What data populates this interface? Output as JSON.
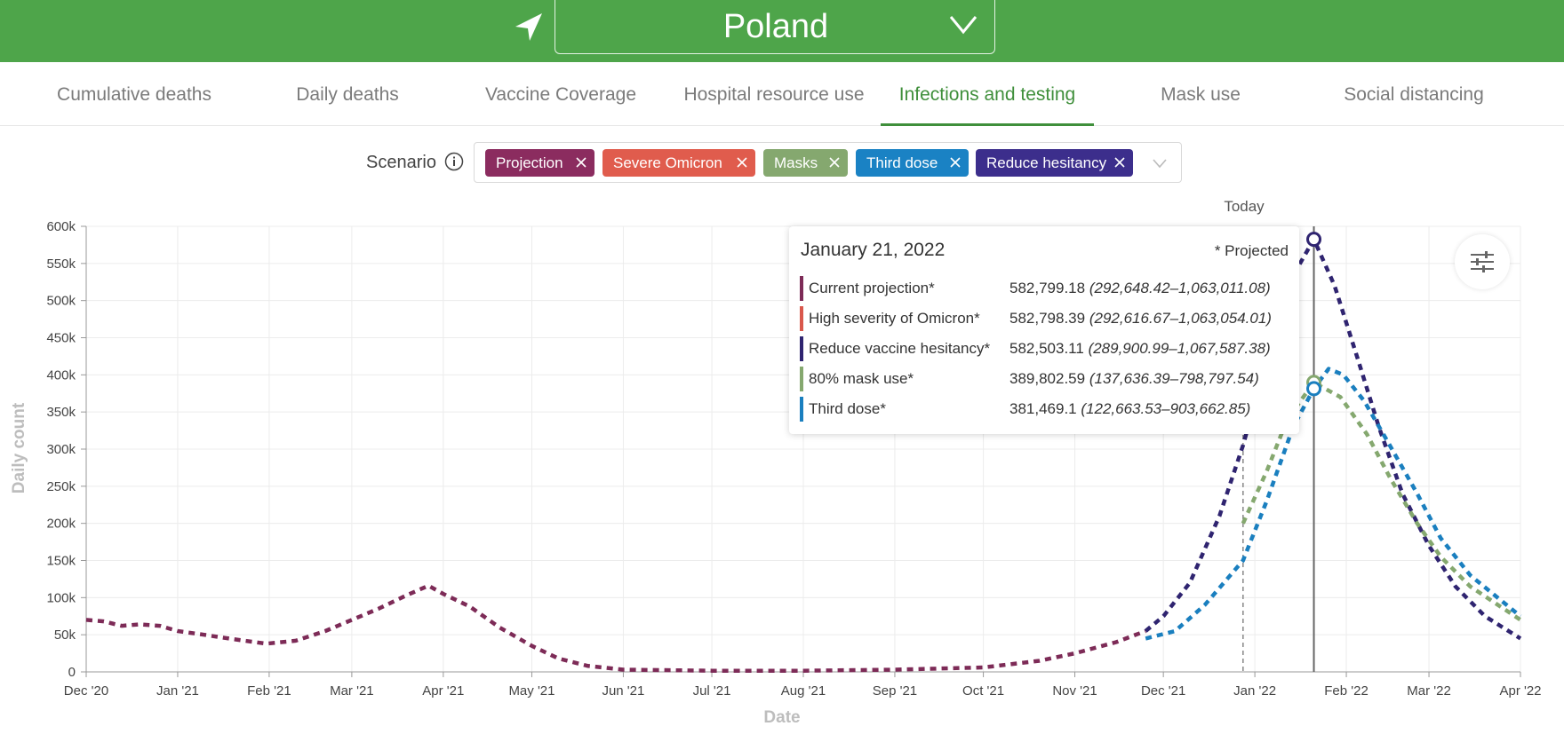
{
  "header": {
    "country": "Poland",
    "location_icon": "location-arrow-icon",
    "dropdown_icon": "chevron-down-icon"
  },
  "tabs": [
    {
      "label": "Cumulative deaths",
      "active": false
    },
    {
      "label": "Daily deaths",
      "active": false
    },
    {
      "label": "Vaccine Coverage",
      "active": false
    },
    {
      "label": "Hospital resource use",
      "active": false
    },
    {
      "label": "Infections and testing",
      "active": true
    },
    {
      "label": "Mask use",
      "active": false
    },
    {
      "label": "Social distancing",
      "active": false
    }
  ],
  "scenario": {
    "label": "Scenario",
    "tags": [
      {
        "label": "Projection",
        "color": "#8b2c5f"
      },
      {
        "label": "Severe Omicron",
        "color": "#e05c4d"
      },
      {
        "label": "Masks",
        "color": "#85a86f"
      },
      {
        "label": "Third dose",
        "color": "#1a82c4"
      },
      {
        "label": "Reduce hesitancy",
        "color": "#3c2e8c"
      }
    ]
  },
  "tooltip": {
    "date": "January 21, 2022",
    "projected_note": "* Projected",
    "rows": [
      {
        "name": "Current projection*",
        "value": "582,799.18",
        "range": "(292,648.42–1,063,011.08)",
        "color": "#7d2b57"
      },
      {
        "name": "High severity of Omicron*",
        "value": "582,798.39",
        "range": "(292,616.67–1,063,054.01)",
        "color": "#d9584c"
      },
      {
        "name": "Reduce vaccine hesitancy*",
        "value": "582,503.11",
        "range": "(289,900.99–1,067,587.38)",
        "color": "#2f2470"
      },
      {
        "name": "80% mask use*",
        "value": "389,802.59",
        "range": "(137,636.39–798,797.54)",
        "color": "#85a86f"
      },
      {
        "name": "Third dose*",
        "value": "381,469.1",
        "range": "(122,663.53–903,662.85)",
        "color": "#1a7fbf"
      }
    ]
  },
  "chart_data": {
    "type": "line",
    "title": "",
    "xlabel": "Date",
    "ylabel": "Daily count",
    "ylim": [
      0,
      600000
    ],
    "xlim": [
      "2020-12-01",
      "2022-04-01"
    ],
    "grid": true,
    "today_label": "Today",
    "today_date": "2021-12-28",
    "hover_date": "2022-01-21",
    "yticks": [
      {
        "value": 0,
        "label": "0"
      },
      {
        "value": 50000,
        "label": "50k"
      },
      {
        "value": 100000,
        "label": "100k"
      },
      {
        "value": 150000,
        "label": "150k"
      },
      {
        "value": 200000,
        "label": "200k"
      },
      {
        "value": 250000,
        "label": "250k"
      },
      {
        "value": 300000,
        "label": "300k"
      },
      {
        "value": 350000,
        "label": "350k"
      },
      {
        "value": 400000,
        "label": "400k"
      },
      {
        "value": 450000,
        "label": "450k"
      },
      {
        "value": 500000,
        "label": "500k"
      },
      {
        "value": 550000,
        "label": "550k"
      },
      {
        "value": 600000,
        "label": "600k"
      }
    ],
    "xticks": [
      {
        "date": "2020-12-01",
        "label": "Dec '20"
      },
      {
        "date": "2021-01-01",
        "label": "Jan '21"
      },
      {
        "date": "2021-02-01",
        "label": "Feb '21"
      },
      {
        "date": "2021-03-01",
        "label": "Mar '21"
      },
      {
        "date": "2021-04-01",
        "label": "Apr '21"
      },
      {
        "date": "2021-05-01",
        "label": "May '21"
      },
      {
        "date": "2021-06-01",
        "label": "Jun '21"
      },
      {
        "date": "2021-07-01",
        "label": "Jul '21"
      },
      {
        "date": "2021-08-01",
        "label": "Aug '21"
      },
      {
        "date": "2021-09-01",
        "label": "Sep '21"
      },
      {
        "date": "2021-10-01",
        "label": "Oct '21"
      },
      {
        "date": "2021-11-01",
        "label": "Nov '21"
      },
      {
        "date": "2021-12-01",
        "label": "Dec '21"
      },
      {
        "date": "2022-01-01",
        "label": "Jan '22"
      },
      {
        "date": "2022-02-01",
        "label": "Feb '22"
      },
      {
        "date": "2022-03-01",
        "label": "Mar '22"
      },
      {
        "date": "2022-04-01",
        "label": "Apr '22"
      }
    ],
    "series": [
      {
        "name": "Current projection*",
        "color": "#7d2b57",
        "points": [
          [
            "2020-12-01",
            70000
          ],
          [
            "2020-12-07",
            68000
          ],
          [
            "2020-12-13",
            62000
          ],
          [
            "2020-12-19",
            64000
          ],
          [
            "2020-12-26",
            62000
          ],
          [
            "2021-01-01",
            55000
          ],
          [
            "2021-01-10",
            50000
          ],
          [
            "2021-01-20",
            44000
          ],
          [
            "2021-01-31",
            38000
          ],
          [
            "2021-02-10",
            42000
          ],
          [
            "2021-02-20",
            55000
          ],
          [
            "2021-03-01",
            70000
          ],
          [
            "2021-03-10",
            85000
          ],
          [
            "2021-03-20",
            104000
          ],
          [
            "2021-03-27",
            116000
          ],
          [
            "2021-04-01",
            105000
          ],
          [
            "2021-04-10",
            88000
          ],
          [
            "2021-04-20",
            60000
          ],
          [
            "2021-05-01",
            35000
          ],
          [
            "2021-05-10",
            18000
          ],
          [
            "2021-05-20",
            8000
          ],
          [
            "2021-06-01",
            3000
          ],
          [
            "2021-07-01",
            1500
          ],
          [
            "2021-08-01",
            1500
          ],
          [
            "2021-09-01",
            3000
          ],
          [
            "2021-10-01",
            6000
          ],
          [
            "2021-10-20",
            15000
          ],
          [
            "2021-11-01",
            25000
          ],
          [
            "2021-11-15",
            40000
          ],
          [
            "2021-11-25",
            55000
          ]
        ]
      },
      {
        "name": "Reduce vaccine hesitancy*",
        "color": "#2f2470",
        "points": [
          [
            "2021-11-25",
            55000
          ],
          [
            "2021-12-01",
            75000
          ],
          [
            "2021-12-10",
            120000
          ],
          [
            "2021-12-20",
            210000
          ],
          [
            "2021-12-28",
            305000
          ],
          [
            "2022-01-05",
            420000
          ],
          [
            "2022-01-12",
            520000
          ],
          [
            "2022-01-21",
            582503
          ],
          [
            "2022-01-28",
            520000
          ],
          [
            "2022-02-05",
            420000
          ],
          [
            "2022-02-12",
            330000
          ],
          [
            "2022-02-20",
            240000
          ],
          [
            "2022-03-01",
            170000
          ],
          [
            "2022-03-10",
            115000
          ],
          [
            "2022-03-20",
            75000
          ],
          [
            "2022-04-01",
            45000
          ]
        ]
      },
      {
        "name": "80% mask use*",
        "color": "#85a86f",
        "points": [
          [
            "2021-12-28",
            200000
          ],
          [
            "2022-01-05",
            270000
          ],
          [
            "2022-01-12",
            340000
          ],
          [
            "2022-01-21",
            389803
          ],
          [
            "2022-01-30",
            370000
          ],
          [
            "2022-02-08",
            320000
          ],
          [
            "2022-02-16",
            260000
          ],
          [
            "2022-02-25",
            200000
          ],
          [
            "2022-03-05",
            155000
          ],
          [
            "2022-03-15",
            115000
          ],
          [
            "2022-04-01",
            70000
          ]
        ]
      },
      {
        "name": "Third dose*",
        "color": "#1a7fbf",
        "points": [
          [
            "2021-11-25",
            45000
          ],
          [
            "2021-12-05",
            55000
          ],
          [
            "2021-12-15",
            90000
          ],
          [
            "2021-12-28",
            150000
          ],
          [
            "2022-01-05",
            230000
          ],
          [
            "2022-01-14",
            330000
          ],
          [
            "2022-01-21",
            381469
          ],
          [
            "2022-01-26",
            408000
          ],
          [
            "2022-01-31",
            400000
          ],
          [
            "2022-02-07",
            365000
          ],
          [
            "2022-02-15",
            310000
          ],
          [
            "2022-02-25",
            240000
          ],
          [
            "2022-03-05",
            180000
          ],
          [
            "2022-03-15",
            130000
          ],
          [
            "2022-04-01",
            75000
          ]
        ]
      }
    ]
  }
}
